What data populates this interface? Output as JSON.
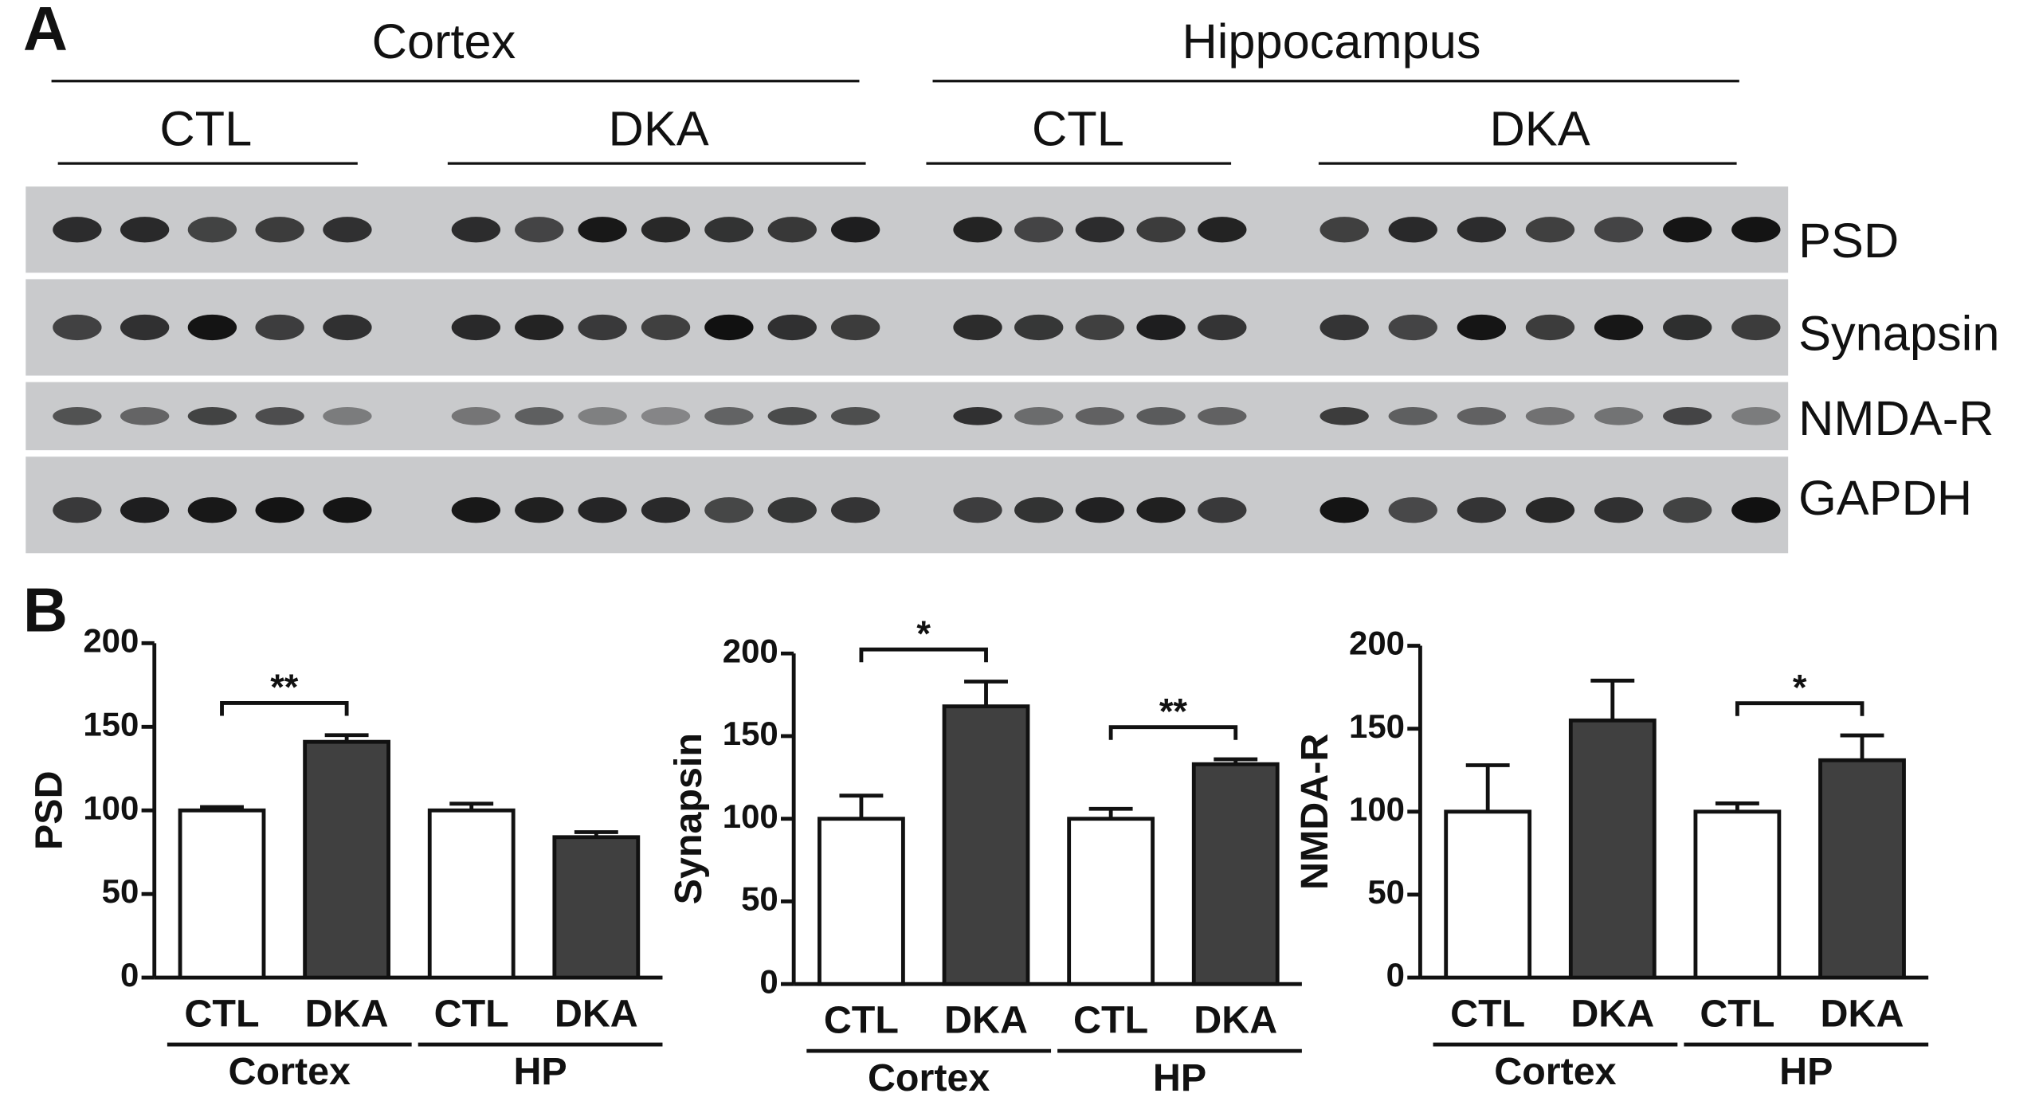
{
  "panel_labels": [
    "A",
    "B"
  ],
  "blot": {
    "regions": [
      "Cortex",
      "Hippocampus"
    ],
    "groups": [
      "CTL",
      "DKA",
      "CTL",
      "DKA"
    ],
    "proteins": [
      "PSD",
      "Synapsin",
      "NMDA-R",
      "GAPDH"
    ]
  },
  "chart_data": [
    {
      "type": "bar",
      "y_label": "PSD",
      "categories": [
        "CTL",
        "DKA",
        "CTL",
        "DKA"
      ],
      "groups": [
        "Cortex",
        "HP"
      ],
      "values": [
        100,
        141,
        100,
        84
      ],
      "errors": [
        2,
        4,
        4,
        3
      ],
      "colors": [
        "#ffffff",
        "#404040",
        "#ffffff",
        "#404040"
      ],
      "ylim": [
        0,
        200
      ],
      "yticks": [
        0,
        50,
        100,
        150,
        200
      ],
      "annotations": [
        {
          "group": "Cortex",
          "text": "**"
        }
      ]
    },
    {
      "type": "bar",
      "y_label": "Synapsin",
      "categories": [
        "CTL",
        "DKA",
        "CTL",
        "DKA"
      ],
      "groups": [
        "Cortex",
        "HP"
      ],
      "values": [
        100,
        168,
        100,
        133
      ],
      "errors": [
        14,
        15,
        6,
        3
      ],
      "colors": [
        "#ffffff",
        "#404040",
        "#ffffff",
        "#404040"
      ],
      "ylim": [
        0,
        200
      ],
      "yticks": [
        0,
        50,
        100,
        150,
        200
      ],
      "annotations": [
        {
          "group": "Cortex",
          "text": "*"
        },
        {
          "group": "HP",
          "text": "**"
        }
      ]
    },
    {
      "type": "bar",
      "y_label": "NMDA-R",
      "categories": [
        "CTL",
        "DKA",
        "CTL",
        "DKA"
      ],
      "groups": [
        "Cortex",
        "HP"
      ],
      "values": [
        100,
        155,
        100,
        131
      ],
      "errors": [
        28,
        24,
        5,
        15
      ],
      "colors": [
        "#ffffff",
        "#404040",
        "#ffffff",
        "#404040"
      ],
      "ylim": [
        0,
        200
      ],
      "yticks": [
        0,
        50,
        100,
        150,
        200
      ],
      "annotations": [
        {
          "group": "HP",
          "text": "*"
        }
      ]
    }
  ]
}
